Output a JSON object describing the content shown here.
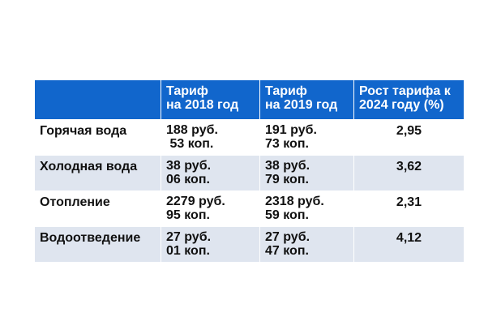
{
  "table": {
    "headers": [
      [
        "",
        ""
      ],
      [
        "Тариф",
        "на 2018 год"
      ],
      [
        "Тариф",
        "на 2019 год"
      ],
      [
        "Рост тарифа к",
        "2024 году (%)"
      ]
    ],
    "rows": [
      {
        "name": "Горячая вода",
        "t2018": [
          "188 руб.",
          " 53 коп."
        ],
        "t2019": [
          "191 руб.",
          "73 коп."
        ],
        "growth": "2,95"
      },
      {
        "name": "Холодная вода",
        "t2018": [
          "38 руб.",
          "06 коп."
        ],
        "t2019": [
          "38 руб.",
          "79 коп."
        ],
        "growth": "3,62"
      },
      {
        "name": "Отопление",
        "t2018": [
          "2279 руб.",
          "95 коп."
        ],
        "t2019": [
          "2318 руб.",
          "59 коп."
        ],
        "growth": "2,31"
      },
      {
        "name": "Водоотведение",
        "t2018": [
          "27 руб.",
          "01 коп."
        ],
        "t2019": [
          "27 руб.",
          "47 коп."
        ],
        "growth": "4,12"
      }
    ]
  },
  "colors": {
    "header_bg": "#1166cc",
    "stripe_bg": "#dfe5ef"
  }
}
